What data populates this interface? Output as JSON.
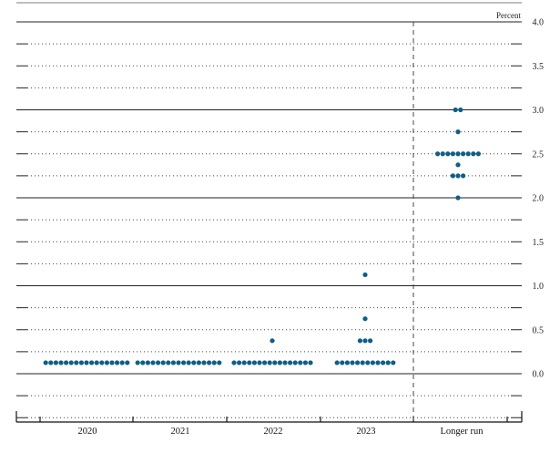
{
  "chart_data": {
    "type": "scatter",
    "unit_label": "Percent",
    "categories": [
      "2020",
      "2021",
      "2022",
      "2023",
      "Longer run"
    ],
    "ylim": [
      -0.5,
      4.0
    ],
    "yticks": [
      {
        "value": 4.0,
        "label": "4.0"
      },
      {
        "value": 3.5,
        "label": "3.5"
      },
      {
        "value": 3.0,
        "label": "3.0"
      },
      {
        "value": 2.5,
        "label": "2.5"
      },
      {
        "value": 2.0,
        "label": "2.0"
      },
      {
        "value": 1.5,
        "label": "1.5"
      },
      {
        "value": 1.0,
        "label": "1.0"
      },
      {
        "value": 0.5,
        "label": "0.5"
      },
      {
        "value": 0.0,
        "label": "0.0"
      }
    ],
    "grid": "dotted at 0.25 steps, solid at whole numbers",
    "dot_color": "#0e5e86",
    "series": [
      {
        "category": "2020",
        "points": [
          {
            "y": 0.125,
            "count": 17
          }
        ]
      },
      {
        "category": "2021",
        "points": [
          {
            "y": 0.125,
            "count": 17
          }
        ]
      },
      {
        "category": "2022",
        "points": [
          {
            "y": 0.125,
            "count": 16
          },
          {
            "y": 0.375,
            "count": 1
          }
        ]
      },
      {
        "category": "2023",
        "points": [
          {
            "y": 0.125,
            "count": 12
          },
          {
            "y": 0.375,
            "count": 3
          },
          {
            "y": 0.625,
            "count": 1
          },
          {
            "y": 1.125,
            "count": 1
          }
        ]
      },
      {
        "category": "Longer run",
        "points": [
          {
            "y": 2.0,
            "count": 1
          },
          {
            "y": 2.25,
            "count": 3
          },
          {
            "y": 2.375,
            "count": 1
          },
          {
            "y": 2.5,
            "count": 9
          },
          {
            "y": 2.75,
            "count": 1
          },
          {
            "y": 3.0,
            "count": 2
          }
        ]
      }
    ]
  }
}
